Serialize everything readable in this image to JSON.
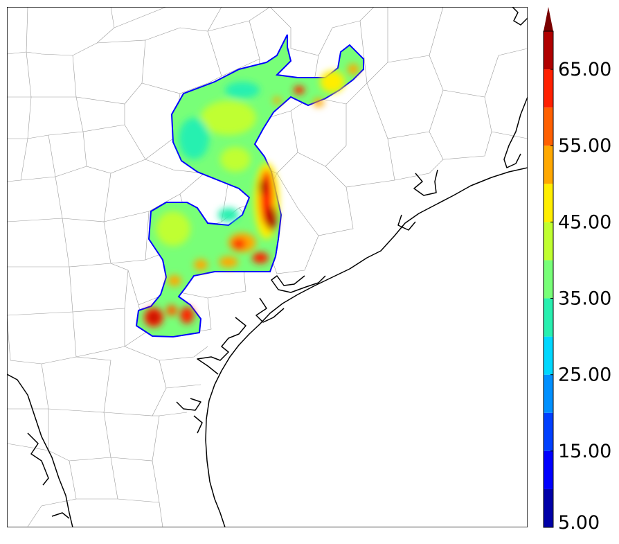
{
  "map": {
    "coastline_color": "#000000",
    "county_line_color": "#9a9a9a",
    "field_outline_color": "#0000ff"
  },
  "colorbar": {
    "extend": "max",
    "levels": [
      5,
      10,
      15,
      20,
      25,
      30,
      35,
      40,
      45,
      50,
      55,
      60,
      65,
      70
    ],
    "colors": [
      "#0000a8",
      "#0000ff",
      "#0040ff",
      "#0090ff",
      "#00d8ff",
      "#28f0b0",
      "#78ff78",
      "#c0ff30",
      "#ffee00",
      "#ffa800",
      "#ff6000",
      "#ff2000",
      "#b00000"
    ],
    "extend_color": "#7a0000",
    "tick_labels": [
      "5.00",
      "15.00",
      "25.00",
      "35.00",
      "45.00",
      "55.00",
      "65.00"
    ]
  }
}
